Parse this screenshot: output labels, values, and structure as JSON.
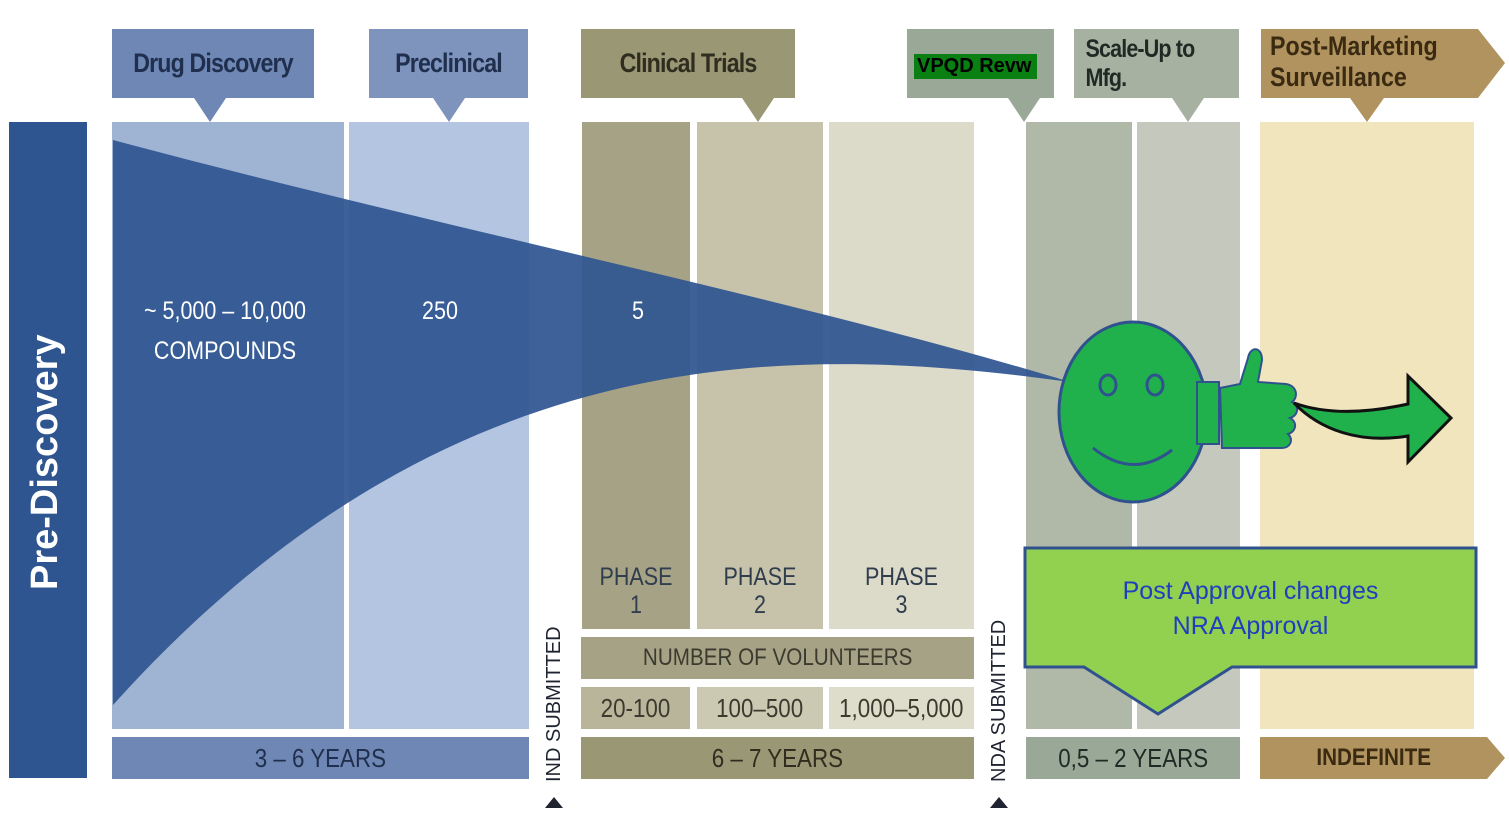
{
  "sidebar": {
    "title": "Pre-Discovery"
  },
  "stages": {
    "drug_discovery": "Drug Discovery",
    "preclinical": "Preclinical",
    "clinical_trials": "Clinical Trials",
    "vpqd_review": "VPQD Revw",
    "scale_up": "Scale-Up to Mfg.",
    "post_marketing_line1": "Post-Marketing",
    "post_marketing_line2": "Surveillance"
  },
  "funnel": {
    "compounds_count": "~ 5,000 – 10,000",
    "compounds_label": "COMPOUNDS",
    "preclinical_count": "250",
    "clinical_count": "5"
  },
  "phases": [
    {
      "line1": "PHASE",
      "line2": "1",
      "volunteers": "20-100"
    },
    {
      "line1": "PHASE",
      "line2": "2",
      "volunteers": "100–500"
    },
    {
      "line1": "PHASE",
      "line2": "3",
      "volunteers": "1,000–5,000"
    }
  ],
  "volunteers_label": "NUMBER OF VOLUNTEERS",
  "durations": {
    "discovery": "3 – 6 YEARS",
    "clinical": "6 – 7 YEARS",
    "review": "0,5 – 2 YEARS",
    "post_marketing": "INDEFINITE"
  },
  "milestones": {
    "ind": "IND SUBMITTED",
    "nda": "NDA SUBMITTED"
  },
  "callout": {
    "line1": "Post Approval changes",
    "line2": "NRA Approval"
  },
  "colors": {
    "discovery_blue": "#6f87b4",
    "dark_blue": "#2f5591",
    "clinical_olive": "#9a9874",
    "review_sage": "#9aa897",
    "post_gold": "#b0935e",
    "smiley_green": "#21b14c",
    "callout_green": "#92d050"
  }
}
